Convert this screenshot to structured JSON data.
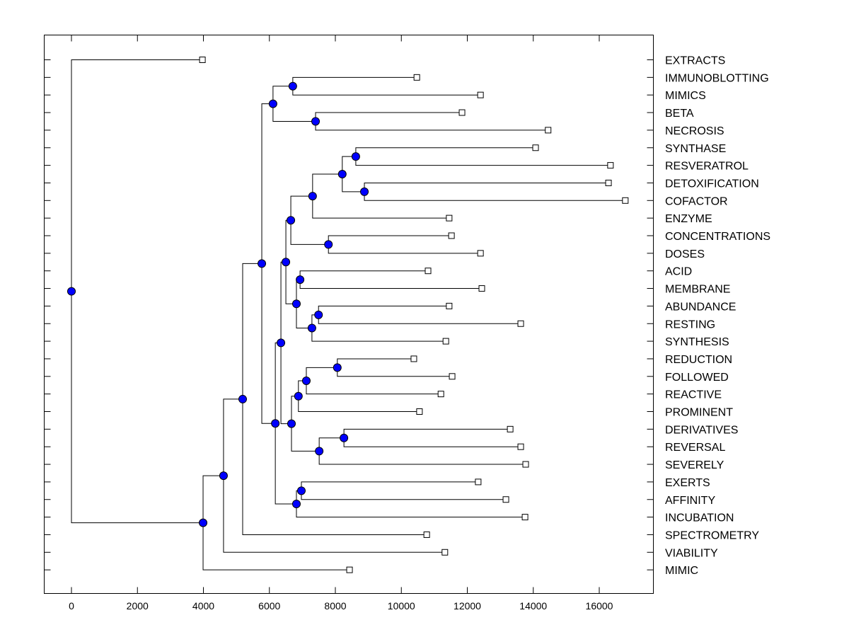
{
  "chart_data": {
    "type": "dendrogram",
    "title": "",
    "xlabel": "",
    "ylabel": "",
    "xlim": [
      -800,
      17600
    ],
    "x_ticks": [
      0,
      2000,
      4000,
      6000,
      8000,
      10000,
      12000,
      14000,
      16000
    ],
    "x_tick_labels": [
      "0",
      "2000",
      "4000",
      "6000",
      "8000",
      "10000",
      "12000",
      "14000",
      "16000"
    ],
    "grid": false,
    "node_color": "#0000ff",
    "leaves": [
      {
        "label": "EXTRACTS",
        "value": 3970
      },
      {
        "label": "IMMUNOBLOTTING",
        "value": 10470
      },
      {
        "label": "MIMICS",
        "value": 12400
      },
      {
        "label": "BETA",
        "value": 11840
      },
      {
        "label": "NECROSIS",
        "value": 14450
      },
      {
        "label": "SYNTHASE",
        "value": 14070
      },
      {
        "label": "RESVERATROL",
        "value": 16340
      },
      {
        "label": "DETOXIFICATION",
        "value": 16280
      },
      {
        "label": "COFACTOR",
        "value": 16790
      },
      {
        "label": "ENZYME",
        "value": 11450
      },
      {
        "label": "CONCENTRATIONS",
        "value": 11520
      },
      {
        "label": "DOSES",
        "value": 12400
      },
      {
        "label": "ACID",
        "value": 10810
      },
      {
        "label": "MEMBRANE",
        "value": 12440
      },
      {
        "label": "ABUNDANCE",
        "value": 11450
      },
      {
        "label": "RESTING",
        "value": 13620
      },
      {
        "label": "SYNTHESIS",
        "value": 11350
      },
      {
        "label": "REDUCTION",
        "value": 10380
      },
      {
        "label": "FOLLOWED",
        "value": 11540
      },
      {
        "label": "REACTIVE",
        "value": 11200
      },
      {
        "label": "PROMINENT",
        "value": 10550
      },
      {
        "label": "DERIVATIVES",
        "value": 13300
      },
      {
        "label": "REVERSAL",
        "value": 13620
      },
      {
        "label": "SEVERELY",
        "value": 13770
      },
      {
        "label": "EXERTS",
        "value": 12330
      },
      {
        "label": "AFFINITY",
        "value": 13170
      },
      {
        "label": "INCUBATION",
        "value": 13750
      },
      {
        "label": "SPECTROMETRY",
        "value": 10770
      },
      {
        "label": "VIABILITY",
        "value": 11320
      },
      {
        "label": "MIMIC",
        "value": 8430
      }
    ],
    "nodes": [
      {
        "id": "root",
        "value": 0,
        "children": [
          "L0",
          "A"
        ]
      },
      {
        "id": "A",
        "value": 3990,
        "children": [
          "B",
          "L29"
        ]
      },
      {
        "id": "B",
        "value": 4610,
        "children": [
          "C",
          "L28"
        ]
      },
      {
        "id": "C",
        "value": 5190,
        "children": [
          "D",
          "L27"
        ]
      },
      {
        "id": "D",
        "value": 5770,
        "children": [
          "E",
          "F"
        ]
      },
      {
        "id": "E",
        "value": 6110,
        "children": [
          "G",
          "H"
        ]
      },
      {
        "id": "G",
        "value": 6710,
        "children": [
          "L1",
          "L2"
        ]
      },
      {
        "id": "H",
        "value": 7400,
        "children": [
          "L3",
          "L4"
        ]
      },
      {
        "id": "F",
        "value": 6180,
        "children": [
          "I",
          "J"
        ]
      },
      {
        "id": "I",
        "value": 6350,
        "children": [
          "K",
          "Lnode"
        ]
      },
      {
        "id": "K",
        "value": 6500,
        "children": [
          "M",
          "N"
        ]
      },
      {
        "id": "M",
        "value": 6650,
        "children": [
          "O",
          "P"
        ]
      },
      {
        "id": "O",
        "value": 7310,
        "children": [
          "Q",
          "L9"
        ]
      },
      {
        "id": "Q",
        "value": 8210,
        "children": [
          "R",
          "S"
        ]
      },
      {
        "id": "R",
        "value": 8620,
        "children": [
          "L5",
          "L6"
        ]
      },
      {
        "id": "S",
        "value": 8880,
        "children": [
          "L7",
          "L8"
        ]
      },
      {
        "id": "P",
        "value": 7790,
        "children": [
          "L10",
          "L11"
        ]
      },
      {
        "id": "N",
        "value": 6820,
        "children": [
          "T",
          "U"
        ]
      },
      {
        "id": "T",
        "value": 6930,
        "children": [
          "L12",
          "L13"
        ]
      },
      {
        "id": "U",
        "value": 7290,
        "children": [
          "V",
          "L16"
        ]
      },
      {
        "id": "V",
        "value": 7490,
        "children": [
          "L14",
          "L15"
        ]
      },
      {
        "id": "Lnode",
        "value": 6670,
        "children": [
          "W",
          "X"
        ]
      },
      {
        "id": "W",
        "value": 6880,
        "children": [
          "Y",
          "L20"
        ]
      },
      {
        "id": "Y",
        "value": 7120,
        "children": [
          "Z",
          "L19"
        ]
      },
      {
        "id": "Z",
        "value": 8060,
        "children": [
          "L17",
          "L18"
        ]
      },
      {
        "id": "X",
        "value": 7510,
        "children": [
          "AA",
          "L23"
        ]
      },
      {
        "id": "AA",
        "value": 8260,
        "children": [
          "L21",
          "L22"
        ]
      },
      {
        "id": "J",
        "value": 6820,
        "children": [
          "AB",
          "L26"
        ]
      },
      {
        "id": "AB",
        "value": 6970,
        "children": [
          "L24",
          "L25"
        ]
      }
    ]
  }
}
